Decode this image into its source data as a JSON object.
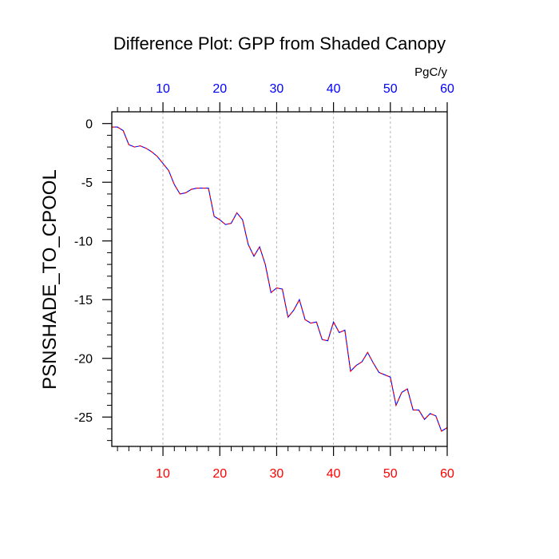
{
  "chart_data": {
    "type": "line",
    "title": "Difference Plot: GPP from Shaded Canopy",
    "ylabel": "PSNSHADE_TO_CPOOL",
    "units": "PgC/y",
    "xlim": [
      1,
      60
    ],
    "ylim": [
      -27.5,
      1
    ],
    "x_ticks": [
      10,
      20,
      30,
      40,
      50,
      60
    ],
    "x_tick_labels": [
      "10",
      "20",
      "30",
      "40",
      "50",
      "60"
    ],
    "y_ticks": [
      0,
      -5,
      -10,
      -15,
      -20,
      -25
    ],
    "y_tick_labels": [
      "0",
      "-5",
      "-10",
      "-15",
      "-20",
      "-25"
    ],
    "x_gridlines": [
      10,
      20,
      30,
      40,
      50
    ],
    "grid": "dashed vertical lines at x ticks",
    "colors": {
      "bottom_ticks": "#ff0000",
      "top_ticks": "#0000ff",
      "series_dash_a": "#ff0000",
      "series_dash_b": "#0000ff"
    },
    "series": [
      {
        "x": [
          1,
          2,
          3,
          4,
          5,
          6,
          7,
          8,
          9,
          10,
          11,
          12,
          13,
          14,
          15,
          16,
          17,
          18,
          19,
          20,
          21,
          22,
          23,
          24,
          25,
          26,
          27,
          28,
          29,
          30,
          31,
          32,
          33,
          34,
          35,
          36,
          37,
          38,
          39,
          40,
          41,
          42,
          43,
          44,
          45,
          46,
          47,
          48,
          49,
          50,
          51,
          52,
          53,
          54,
          55,
          56,
          57,
          58,
          59,
          60
        ],
        "values": [
          -0.3,
          -0.3,
          -0.6,
          -1.8,
          -2.0,
          -1.9,
          -2.1,
          -2.4,
          -2.8,
          -3.4,
          -4.0,
          -5.2,
          -6.0,
          -5.9,
          -5.6,
          -5.5,
          -5.5,
          -5.5,
          -7.9,
          -8.2,
          -8.6,
          -8.5,
          -7.6,
          -8.2,
          -10.3,
          -11.3,
          -10.5,
          -12.0,
          -14.4,
          -14.0,
          -14.1,
          -16.5,
          -15.9,
          -15.0,
          -16.7,
          -17.0,
          -16.9,
          -18.4,
          -18.5,
          -16.9,
          -17.8,
          -17.6,
          -21.1,
          -20.6,
          -20.3,
          -19.5,
          -20.4,
          -21.2,
          -21.4,
          -21.6,
          -24.0,
          -22.9,
          -22.6,
          -24.4,
          -24.4,
          -25.2,
          -24.7,
          -24.9,
          -26.2,
          -25.9
        ]
      }
    ]
  }
}
